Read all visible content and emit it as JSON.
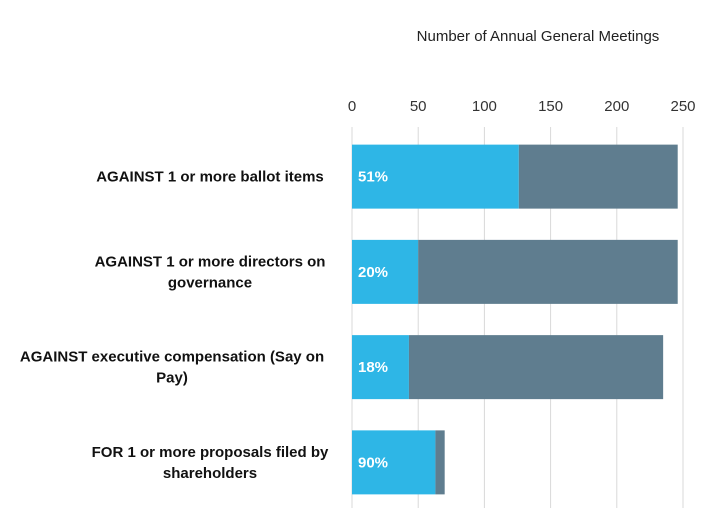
{
  "chart_data": {
    "type": "bar",
    "orientation": "horizontal",
    "stacked": true,
    "title": "",
    "xlabel": "Number of Annual General Meetings",
    "ylabel": "",
    "xlim": [
      0,
      250
    ],
    "xticks": [
      0,
      50,
      100,
      150,
      200,
      250
    ],
    "x_axis_position": "top",
    "grid": true,
    "legend": "none",
    "categories": [
      "AGAINST 1 or more ballot items",
      "AGAINST 1 or more directors on governance",
      "AGAINST executive compensation (Say on Pay)",
      "FOR 1 or more proposals filed by shareholders"
    ],
    "category_lines": [
      [
        "AGAINST 1 or more ballot items"
      ],
      [
        "AGAINST 1 or more directors on",
        "governance"
      ],
      [
        "AGAINST executive compensation (Say on",
        "Pay)"
      ],
      [
        "FOR 1 or more proposals filed by",
        "shareholders"
      ]
    ],
    "series": [
      {
        "values": [
          126,
          50,
          43,
          63
        ],
        "color": "#2eb6e6"
      },
      {
        "values": [
          120,
          196,
          192,
          7
        ],
        "color": "#5f7d8f"
      }
    ],
    "data_labels": [
      "51%",
      "20%",
      "18%",
      "90%"
    ]
  }
}
